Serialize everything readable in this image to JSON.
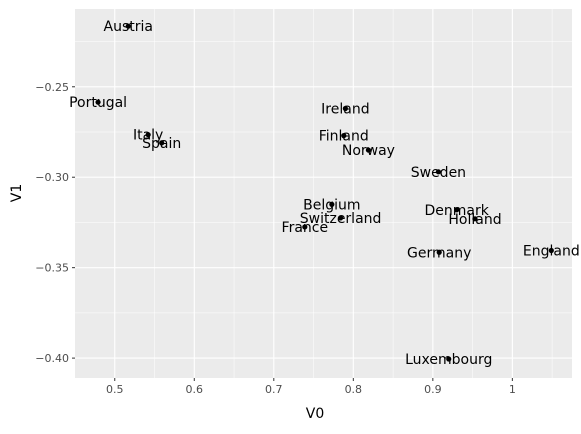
{
  "chart_data": {
    "type": "scatter",
    "xlabel": "V0",
    "ylabel": "V1",
    "xlim": [
      0.45,
      1.075
    ],
    "ylim": [
      -0.411,
      -0.207
    ],
    "x_ticks": [
      {
        "value": 0.5,
        "label": "0.5"
      },
      {
        "value": 0.6,
        "label": "0.6"
      },
      {
        "value": 0.7,
        "label": "0.7"
      },
      {
        "value": 0.8,
        "label": "0.8"
      },
      {
        "value": 0.9,
        "label": "0.9"
      },
      {
        "value": 1.0,
        "label": "1"
      }
    ],
    "y_ticks": [
      {
        "value": -0.25,
        "label": "−0.25"
      },
      {
        "value": -0.3,
        "label": "−0.30"
      },
      {
        "value": -0.35,
        "label": "−0.35"
      },
      {
        "value": -0.4,
        "label": "−0.40"
      }
    ],
    "grid": true,
    "points": [
      {
        "label": "Austria",
        "x": 0.517,
        "y": -0.2165
      },
      {
        "label": "Portugal",
        "x": 0.479,
        "y": -0.2585
      },
      {
        "label": "Italy",
        "x": 0.542,
        "y": -0.2765
      },
      {
        "label": "Spain",
        "x": 0.559,
        "y": -0.281
      },
      {
        "label": "Ireland",
        "x": 0.79,
        "y": -0.262
      },
      {
        "label": "Finland",
        "x": 0.788,
        "y": -0.277
      },
      {
        "label": "Norway",
        "x": 0.819,
        "y": -0.285
      },
      {
        "label": "Sweden",
        "x": 0.907,
        "y": -0.297
      },
      {
        "label": "Belgium",
        "x": 0.773,
        "y": -0.315
      },
      {
        "label": "Switzerland",
        "x": 0.784,
        "y": -0.3225
      },
      {
        "label": "France",
        "x": 0.739,
        "y": -0.3275
      },
      {
        "label": "Denmark",
        "x": 0.93,
        "y": -0.318
      },
      {
        "label": "Holland",
        "x": 0.953,
        "y": -0.323
      },
      {
        "label": "Germany",
        "x": 0.908,
        "y": -0.3415
      },
      {
        "label": "England",
        "x": 1.049,
        "y": -0.3405
      },
      {
        "label": "Luxembourg",
        "x": 0.92,
        "y": -0.4005
      }
    ]
  }
}
